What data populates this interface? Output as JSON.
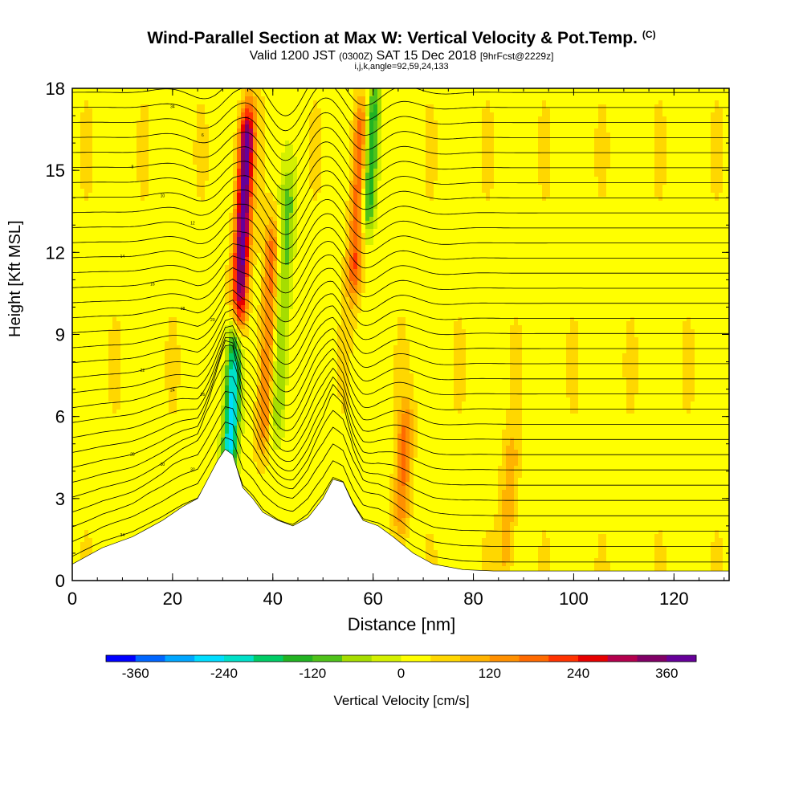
{
  "header": {
    "title": "Wind-Parallel Section at Max W: Vertical Velocity & Pot.Temp.",
    "copyright": "(C)",
    "valid_prefix": "Valid 1200 JST",
    "valid_utc": "(0300Z)",
    "valid_date": "SAT 15 Dec 2018",
    "forecast_info": "[9hrFcst@2229z]",
    "indices": "i,j,k,angle=92,59,24,133"
  },
  "chart_data": {
    "type": "heatmap",
    "xlabel": "Distance [nm]",
    "ylabel": "Height [Kft MSL]",
    "xlim": [
      0,
      131
    ],
    "ylim": [
      0,
      18
    ],
    "xticks": [
      0,
      20,
      40,
      60,
      80,
      100,
      120
    ],
    "yticks": [
      0,
      3,
      6,
      9,
      12,
      15,
      18
    ],
    "colorbar": {
      "label": "Vertical Velocity [cm/s]",
      "ticks": [
        -360,
        -240,
        -120,
        0,
        120,
        240,
        360
      ],
      "range": [
        -400,
        400
      ],
      "colors": [
        "#0000ff",
        "#0066ff",
        "#00a6ff",
        "#00ddff",
        "#00e0c8",
        "#00cc66",
        "#22b322",
        "#4fc21a",
        "#a6dd00",
        "#d4f000",
        "#ffff00",
        "#ffd700",
        "#ffb300",
        "#ff9000",
        "#ff6a00",
        "#ff3300",
        "#e60000",
        "#b3004d",
        "#800066",
        "#660099"
      ]
    },
    "vertical_velocity_features": [
      {
        "x_center": 34,
        "type": "updraft",
        "peak_cms": 360,
        "z_range": [
          8,
          18
        ]
      },
      {
        "x_center": 32,
        "type": "downdraft",
        "peak_cms": -300,
        "z_range": [
          4,
          10
        ]
      },
      {
        "x_center": 39,
        "type": "updraft",
        "peak_cms": 150,
        "z_range": [
          4,
          14
        ]
      },
      {
        "x_center": 42,
        "type": "downdraft",
        "peak_cms": -120,
        "z_range": [
          4,
          16
        ]
      },
      {
        "x_center": 57,
        "type": "updraft",
        "peak_cms": 180,
        "z_range": [
          10,
          18
        ]
      },
      {
        "x_center": 59.5,
        "type": "downdraft",
        "peak_cms": -200,
        "z_range": [
          13,
          18
        ]
      },
      {
        "x_center": 66,
        "type": "updraft",
        "peak_cms": 140,
        "z_range": [
          2,
          6
        ]
      },
      {
        "x_center": 87,
        "type": "updraft",
        "peak_cms": 90,
        "z_range": [
          0.5,
          5
        ]
      }
    ],
    "terrain_kft": {
      "x": [
        0,
        6,
        12,
        15,
        18,
        22,
        25,
        27,
        29,
        30.5,
        32,
        34,
        36,
        38,
        41,
        44,
        47,
        50,
        52,
        54,
        56,
        58,
        61,
        64,
        68,
        72,
        78,
        84,
        90,
        110,
        131
      ],
      "z": [
        0.6,
        1.2,
        1.6,
        1.9,
        2.2,
        2.7,
        3.0,
        3.7,
        4.4,
        4.8,
        4.6,
        3.4,
        3.0,
        2.5,
        2.2,
        2.0,
        2.3,
        3.0,
        3.7,
        3.6,
        2.8,
        2.2,
        2.0,
        1.6,
        1.0,
        0.6,
        0.4,
        0.35,
        0.35,
        0.35,
        0.35
      ]
    },
    "isentrope_labels": [
      "34",
      "32",
      "30",
      "28",
      "26",
      "24",
      "22",
      "20",
      "18",
      "16",
      "14",
      "12",
      "10",
      "8",
      "6"
    ]
  }
}
